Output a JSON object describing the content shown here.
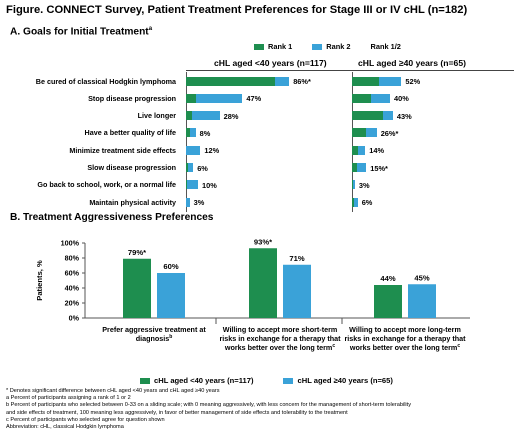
{
  "title": "Figure. CONNECT Survey, Patient Treatment Preferences for Stage III or IV cHL (n=182)",
  "colors": {
    "rank1": "#1e8e4f",
    "rank2": "#3aa2d8",
    "axis": "#555555"
  },
  "sectionA": {
    "heading": "A.  Goals for Initial Treatment",
    "heading_sup": "a",
    "legend": [
      "Rank 1",
      "Rank 2",
      "Rank 1/2"
    ],
    "group_left": "cHL aged <40 years (n=117)",
    "group_right": "cHL aged ≥40 years (n=65)"
  },
  "sectionB": {
    "heading": "B.  Treatment Aggressiveness Preferences",
    "legend": [
      "cHL aged <40 years (n=117)",
      "cHL aged ≥40 years (n=65)"
    ]
  },
  "chart_data": [
    {
      "type": "bar",
      "orientation": "horizontal",
      "stacked": true,
      "categories": [
        "Be cured of classical Hodgkin lymphoma",
        "Stop disease progression",
        "Live longer",
        "Have a better quality of life",
        "Minimize treatment side effects",
        "Slow disease progression",
        "Go back to school, work, or a normal life",
        "Maintain physical activity"
      ],
      "panels": [
        {
          "name": "cHL aged <40 years (n=117)",
          "rank1": [
            74,
            8,
            5,
            3,
            0,
            2,
            1,
            0
          ],
          "rank2": [
            12,
            39,
            23,
            5,
            12,
            4,
            9,
            3
          ],
          "total_labels": [
            "86%*",
            "47%",
            "28%",
            "8%",
            "12%",
            "6%",
            "10%",
            "3%"
          ],
          "xlim": [
            0,
            100
          ]
        },
        {
          "name": "cHL aged ≥40 years (n=65)",
          "rank1": [
            28,
            20,
            33,
            15,
            6,
            5,
            1,
            2
          ],
          "rank2": [
            24,
            20,
            10,
            11,
            8,
            10,
            2,
            4
          ],
          "total_labels": [
            "52%",
            "40%",
            "43%",
            "26%*",
            "14%",
            "15%*",
            "3%",
            "6%"
          ],
          "xlim": [
            0,
            100
          ]
        }
      ]
    },
    {
      "type": "bar",
      "categories": [
        "Prefer aggressive treatment at diagnosis",
        "Willing to accept more short-term risks in exchange for a therapy that works better over the long term",
        "Willing to accept more long-term risks in exchange for a therapy that works better over the long term"
      ],
      "category_sups": [
        "b",
        "c",
        "c"
      ],
      "series": [
        {
          "name": "cHL aged <40 years (n=117)",
          "values": [
            79,
            93,
            44
          ],
          "labels": [
            "79%*",
            "93%*",
            "44%"
          ]
        },
        {
          "name": "cHL aged ≥40 years (n=65)",
          "values": [
            60,
            71,
            45
          ],
          "labels": [
            "60%",
            "71%",
            "45%"
          ]
        }
      ],
      "ylabel": "Patients, %",
      "yticks": [
        "0%",
        "20%",
        "40%",
        "60%",
        "80%",
        "100%"
      ],
      "ylim": [
        0,
        100
      ]
    }
  ],
  "footnotes": [
    "* Denotes significant difference between cHL aged <40 years and cHL aged ≥40 years",
    "a Percent of participants assigning a rank of 1 or 2",
    "b Percent of participants who selected between 0-33 on a sliding scale; with 0 meaning aggressively, with less concern for the management of short-term tolerability",
    "and side effects of treatment, 100 meaning less aggressively, in favor of better management of side effects and tolerability to the treatment",
    "c Percent of participants who selected agree for question shown",
    "Abbreviation: cHL, classical Hodgkin lymphoma"
  ]
}
